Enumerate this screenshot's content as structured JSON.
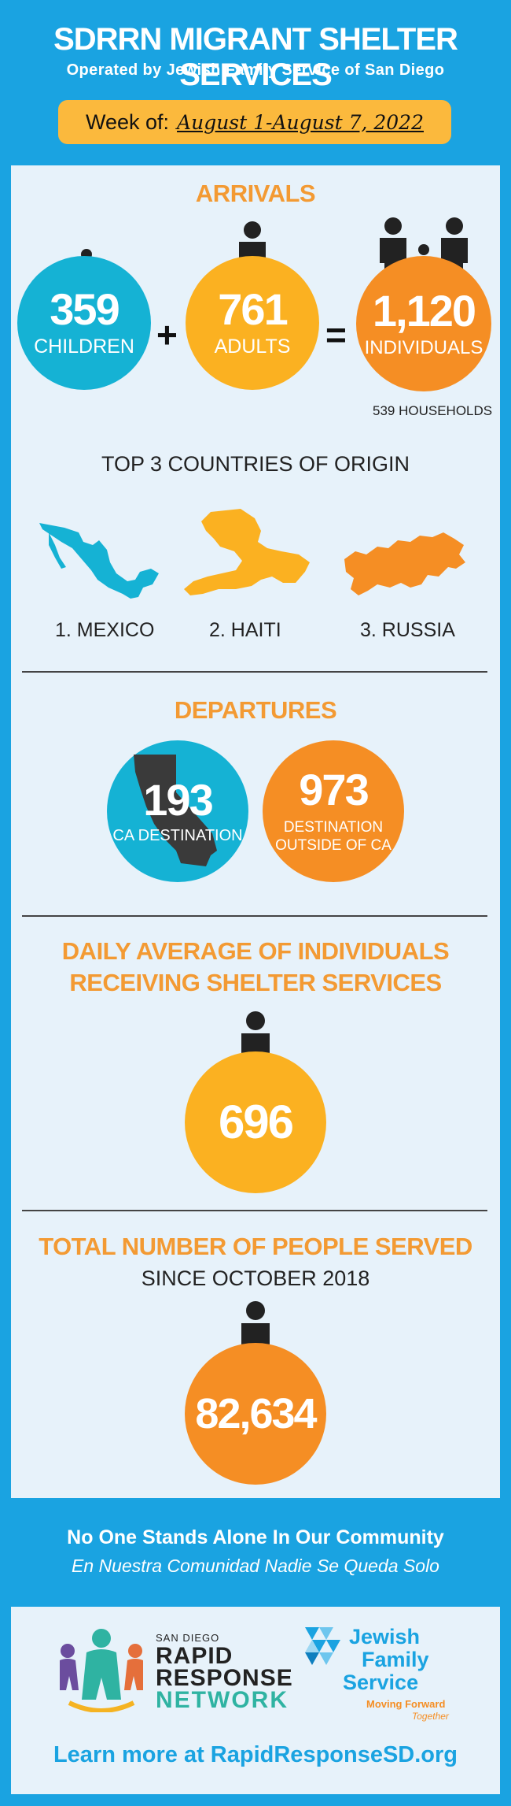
{
  "header": {
    "title": "SDRRN MIGRANT SHELTER SERVICES",
    "subtitle": "Operated by Jewish Family Service of San Diego",
    "week_label": "Week of:",
    "week_value": "August 1-August 7, 2022"
  },
  "arrivals": {
    "title": "ARRIVALS",
    "children_count": "359",
    "children_label": "CHILDREN",
    "plus": "+",
    "adults_count": "761",
    "adults_label": "ADULTS",
    "equals": "=",
    "individuals_count": "1,120",
    "individuals_label": "INDIVIDUALS",
    "households": "539 HOUSEHOLDS"
  },
  "countries": {
    "title": "TOP 3 COUNTRIES OF ORIGIN",
    "items": [
      "1. MEXICO",
      "2. HAITI",
      "3. RUSSIA"
    ]
  },
  "departures": {
    "title": "DEPARTURES",
    "ca_count": "193",
    "ca_label": "CA DESTINATION",
    "outside_count": "973",
    "outside_label_1": "DESTINATION",
    "outside_label_2": "OUTSIDE OF CA"
  },
  "daily_average": {
    "title_line_1": "DAILY AVERAGE OF INDIVIDUALS",
    "title_line_2": "RECEIVING SHELTER SERVICES",
    "count": "696"
  },
  "total": {
    "title": "TOTAL NUMBER OF PEOPLE SERVED",
    "subtitle": "SINCE OCTOBER 2018",
    "count": "82,634"
  },
  "footer": {
    "slogan_en": "No One Stands Alone In Our Community",
    "slogan_es": "En Nuestra Comunidad Nadie Se Queda Solo",
    "rrn_small": "SAN DIEGO",
    "rrn_line_1": "RAPID",
    "rrn_line_2": "RESPONSE",
    "rrn_line_3": "NETWORK",
    "jfs_line_1": "Jewish",
    "jfs_line_2": "Family",
    "jfs_line_3": "Service",
    "jfs_tag_1": "Moving Forward",
    "jfs_tag_2": "Together",
    "learn_more": "Learn more at RapidResponseSD.org"
  },
  "colors": {
    "background": "#1aa3e1",
    "panel": "#e7f2fa",
    "accent_orange": "#f39a33",
    "blue_circle": "#15b2d4",
    "yellow_circle": "#fbb121",
    "orange_circle": "#f58e24",
    "week_box": "#fbb93d"
  }
}
